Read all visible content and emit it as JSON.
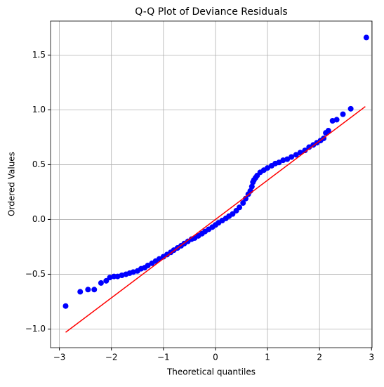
{
  "chart_data": {
    "type": "scatter",
    "title": "Q-Q Plot of Deviance Residuals",
    "x_label": "Theoretical quantiles",
    "y_label": "Ordered Values",
    "series": [
      {
        "color": "#0000ff",
        "x": [
          -2.88,
          -2.6,
          -2.45,
          -2.33,
          -2.2,
          -2.1,
          -2.03,
          -1.95,
          -1.88,
          -1.8,
          -1.72,
          -1.65,
          -1.58,
          -1.5,
          -1.43,
          -1.36,
          -1.3,
          -1.22,
          -1.15,
          -1.08,
          -1.0,
          -0.93,
          -0.86,
          -0.8,
          -0.73,
          -0.66,
          -0.6,
          -0.53,
          -0.46,
          -0.4,
          -0.33,
          -0.26,
          -0.2,
          -0.13,
          -0.06,
          0.0,
          0.06,
          0.13,
          0.2,
          0.26,
          0.33,
          0.4,
          0.46,
          0.53,
          0.58,
          0.63,
          0.67,
          0.7,
          0.72,
          0.74,
          0.77,
          0.8,
          0.86,
          0.93,
          1.0,
          1.08,
          1.15,
          1.22,
          1.3,
          1.38,
          1.46,
          1.55,
          1.63,
          1.72,
          1.8,
          1.88,
          1.95,
          2.02,
          2.08,
          2.12,
          2.17,
          2.25,
          2.33,
          2.45,
          2.6,
          2.9
        ],
        "y": [
          -0.79,
          -0.66,
          -0.64,
          -0.64,
          -0.58,
          -0.56,
          -0.53,
          -0.52,
          -0.52,
          -0.51,
          -0.5,
          -0.49,
          -0.48,
          -0.47,
          -0.45,
          -0.44,
          -0.42,
          -0.4,
          -0.38,
          -0.36,
          -0.34,
          -0.32,
          -0.3,
          -0.28,
          -0.26,
          -0.24,
          -0.22,
          -0.2,
          -0.18,
          -0.17,
          -0.15,
          -0.13,
          -0.11,
          -0.09,
          -0.07,
          -0.05,
          -0.03,
          -0.01,
          0.01,
          0.03,
          0.05,
          0.08,
          0.11,
          0.15,
          0.19,
          0.23,
          0.26,
          0.3,
          0.34,
          0.36,
          0.38,
          0.4,
          0.43,
          0.45,
          0.47,
          0.49,
          0.51,
          0.52,
          0.54,
          0.55,
          0.57,
          0.59,
          0.61,
          0.63,
          0.66,
          0.68,
          0.7,
          0.72,
          0.74,
          0.79,
          0.81,
          0.9,
          0.91,
          0.96,
          1.01,
          1.66
        ]
      }
    ],
    "line": {
      "color": "#ff0000",
      "x": [
        -2.88,
        2.88
      ],
      "y": [
        -1.03,
        1.03
      ]
    },
    "xlim": [
      -3.17,
      3.01
    ],
    "ylim": [
      -1.17,
      1.81
    ],
    "xticks": [
      {
        "value": -3,
        "label": "−3"
      },
      {
        "value": -2,
        "label": "−2"
      },
      {
        "value": -1,
        "label": "−1"
      },
      0,
      1,
      2,
      3
    ],
    "yticks": [
      {
        "value": -1,
        "label": "−1.0"
      },
      {
        "value": -0.5,
        "label": "−0.5"
      },
      {
        "value": 0,
        "label": "0.0"
      },
      {
        "value": 0.5,
        "label": "0.5"
      },
      {
        "value": 1,
        "label": "1.0"
      },
      {
        "value": 1.5,
        "label": "1.5"
      }
    ],
    "grid": true
  }
}
